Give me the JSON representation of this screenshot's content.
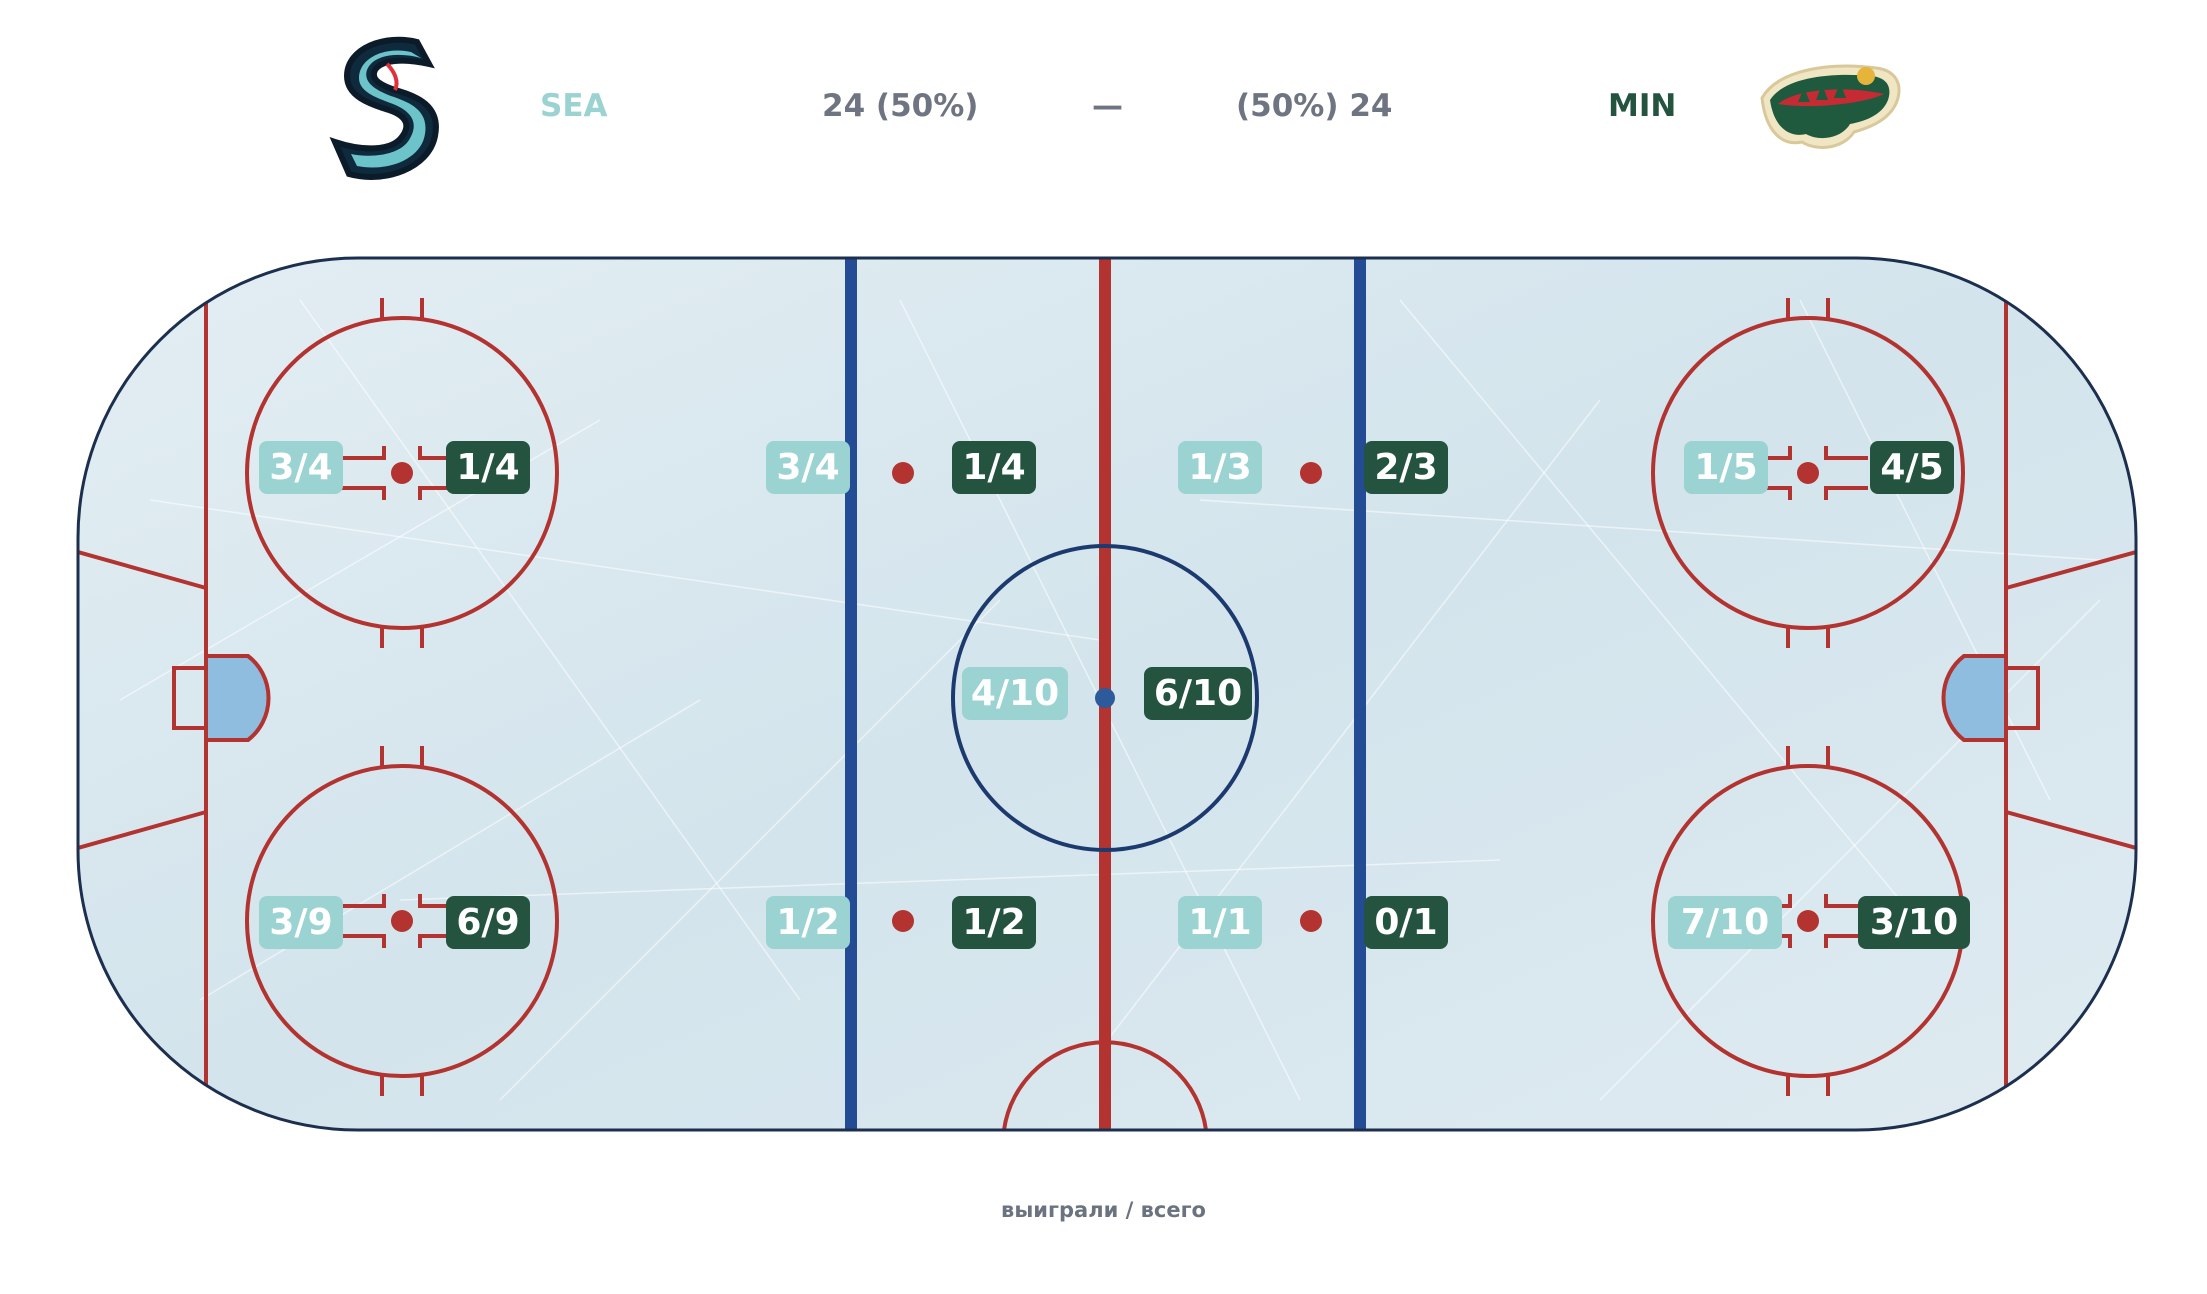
{
  "header": {
    "home_abbr": "SEA",
    "home_total": "24 (50%)",
    "separator": "—",
    "away_total": "(50%) 24",
    "away_abbr": "MIN",
    "home_logo_icon": "kraken-s-logo-icon",
    "away_logo_icon": "wild-logo-icon"
  },
  "colors": {
    "home_team": "#9bd3d3",
    "away_team": "#245440",
    "score_text": "#6e7481",
    "ice": "#dbe9ef",
    "red_line": "#b2332f",
    "blue_line": "#244c95",
    "board": "#1c2f4e"
  },
  "faceoff_spots": [
    {
      "spot": "home-zone-top",
      "home": "3/4",
      "away": "1/4"
    },
    {
      "spot": "home-zone-bottom",
      "home": "3/9",
      "away": "6/9"
    },
    {
      "spot": "home-neutral-top",
      "home": "3/4",
      "away": "1/4"
    },
    {
      "spot": "home-neutral-bottom",
      "home": "1/2",
      "away": "1/2"
    },
    {
      "spot": "center-ice",
      "home": "4/10",
      "away": "6/10"
    },
    {
      "spot": "away-neutral-top",
      "home": "1/3",
      "away": "2/3"
    },
    {
      "spot": "away-neutral-bottom",
      "home": "1/1",
      "away": "0/1"
    },
    {
      "spot": "away-zone-top",
      "home": "1/5",
      "away": "4/5"
    },
    {
      "spot": "away-zone-bottom",
      "home": "7/10",
      "away": "3/10"
    }
  ],
  "footer": {
    "legend": "выиграли / всего"
  }
}
